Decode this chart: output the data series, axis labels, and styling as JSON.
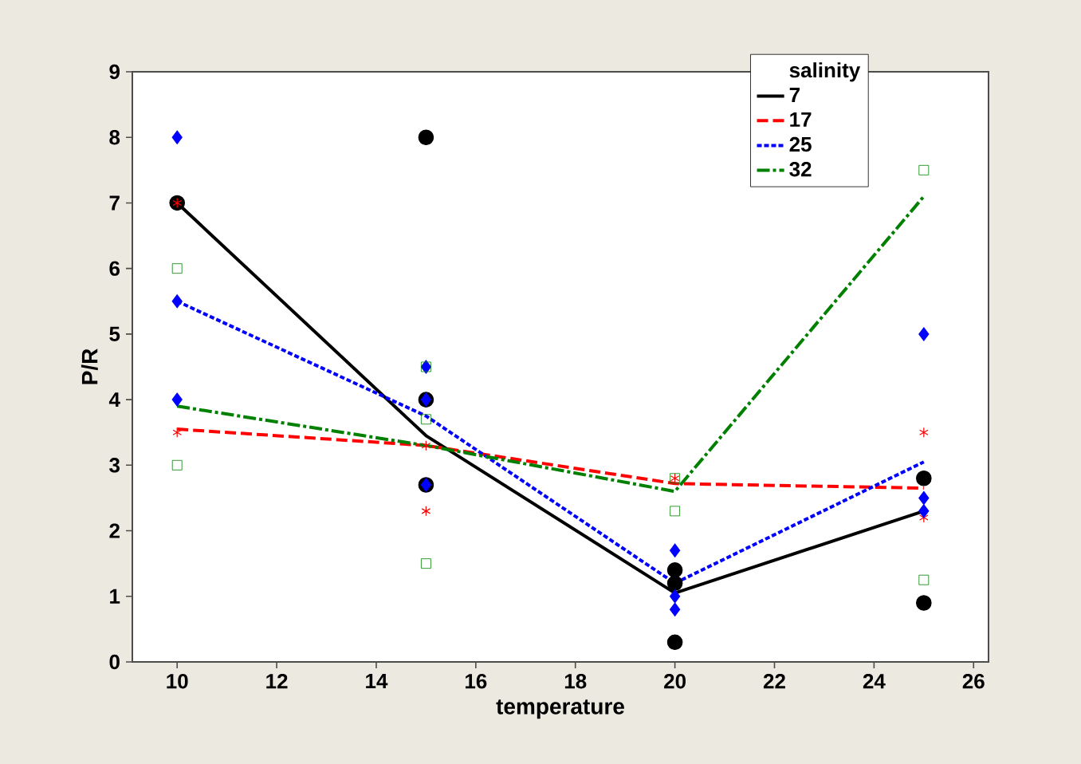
{
  "chart_data": {
    "type": "scatter",
    "xlabel": "temperature",
    "ylabel": "P/R",
    "legend_title": "salinity",
    "legend": "top right",
    "xlim": [
      9.1,
      26.3
    ],
    "ylim": [
      0,
      9
    ],
    "xticks": [
      10,
      12,
      14,
      16,
      18,
      20,
      22,
      24,
      26
    ],
    "yticks": [
      0,
      1,
      2,
      3,
      4,
      5,
      6,
      7,
      8,
      9
    ],
    "grid": false,
    "series": [
      {
        "color": "#000000",
        "marker": "circle",
        "x": [
          10,
          15,
          15,
          15,
          20,
          20,
          20,
          25,
          25
        ],
        "values": [
          7,
          8,
          4,
          2.7,
          1.4,
          1.2,
          0.3,
          2.8,
          0.9
        ]
      },
      {
        "name": "7",
        "type": "line",
        "color": "#000000",
        "line_style": "solid",
        "marker": "none",
        "x": [
          10,
          15,
          20,
          25
        ],
        "values": [
          7,
          3.45,
          1.05,
          2.3
        ]
      },
      {
        "color": "#ff0000",
        "marker": "cross",
        "x": [
          10,
          10,
          15,
          15,
          20,
          25,
          25
        ],
        "values": [
          7,
          3.5,
          3.3,
          2.3,
          2.8,
          3.5,
          2.2
        ]
      },
      {
        "name": "17",
        "type": "line",
        "color": "#ff0000",
        "line_style": "dashed",
        "marker": "none",
        "x": [
          10,
          15,
          20,
          25
        ],
        "values": [
          3.55,
          3.3,
          2.72,
          2.65
        ]
      },
      {
        "color": "#0000ff",
        "marker": "diamond",
        "x": [
          10,
          10,
          10,
          15,
          15,
          15,
          20,
          20,
          20,
          25,
          25,
          25
        ],
        "values": [
          8,
          5.5,
          4,
          4.5,
          4,
          2.7,
          1.7,
          1.0,
          0.8,
          5,
          2.5,
          2.3
        ]
      },
      {
        "name": "25",
        "type": "line",
        "color": "#0000ff",
        "line_style": "dotted",
        "marker": "none",
        "x": [
          10,
          15,
          20,
          25
        ],
        "values": [
          5.5,
          3.75,
          1.2,
          3.05
        ]
      },
      {
        "color": "#008000",
        "marker": "square",
        "x": [
          10,
          10,
          15,
          15,
          15,
          20,
          20,
          25,
          25
        ],
        "values": [
          6,
          3,
          4.5,
          3.7,
          1.5,
          2.8,
          2.3,
          7.5,
          1.25
        ]
      },
      {
        "name": "32",
        "type": "line",
        "color": "#008000",
        "line_style": "dashdot",
        "marker": "none",
        "x": [
          10,
          15,
          20,
          25
        ],
        "values": [
          3.9,
          3.3,
          2.6,
          7.1
        ]
      }
    ]
  }
}
